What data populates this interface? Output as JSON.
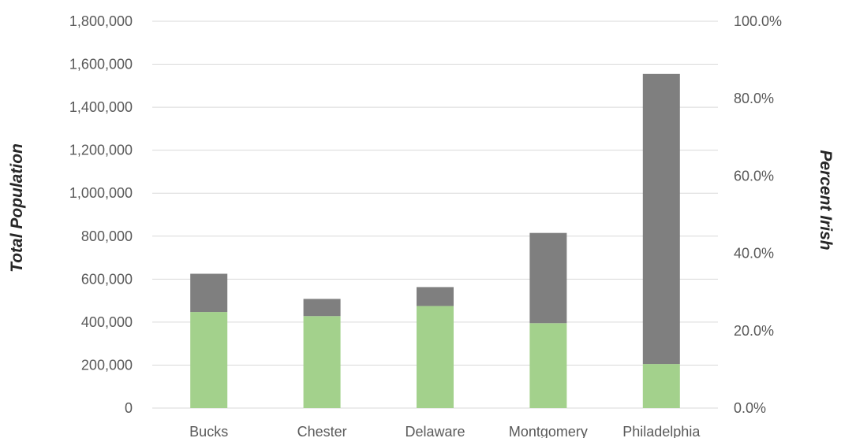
{
  "chart_data": {
    "type": "bar",
    "stacked": true,
    "categories": [
      "Bucks",
      "Chester",
      "Delaware",
      "Montgomery",
      "Philadelphia"
    ],
    "series": [
      {
        "name": "",
        "color": "#a3d18c",
        "values": [
          447000,
          428000,
          475000,
          395000,
          205000
        ]
      },
      {
        "name": "",
        "color": "#7f7f7f",
        "values": [
          178000,
          80000,
          88000,
          420000,
          1350000
        ]
      }
    ],
    "ylabel": "Total Population",
    "ylabel_right": "Percent Irish",
    "ylim": [
      0,
      1800000
    ],
    "y2lim": [
      0,
      100
    ],
    "y_ticks": [
      "0",
      "200,000",
      "400,000",
      "600,000",
      "800,000",
      "1,000,000",
      "1,200,000",
      "1,400,000",
      "1,600,000",
      "1,800,000"
    ],
    "y2_ticks": [
      "0.0%",
      "20.0%",
      "40.0%",
      "60.0%",
      "80.0%",
      "100.0%"
    ],
    "grid": true,
    "legend": "none"
  }
}
